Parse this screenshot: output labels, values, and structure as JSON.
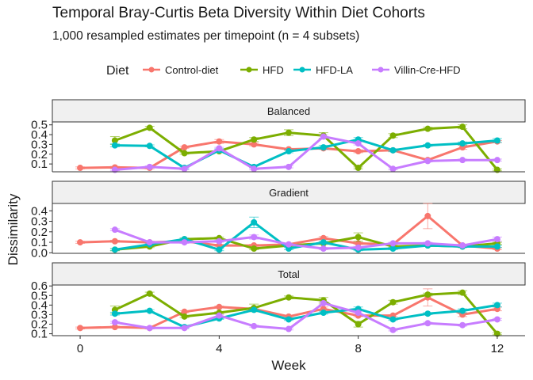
{
  "chart_data": {
    "type": "line",
    "title": "Temporal Bray-Curtis Beta Diversity Within Diet Cohorts",
    "subtitle": "1,000 resampled estimates per timepoint (n = 4 subsets)",
    "xlabel": "Week",
    "ylabel": "Dissimilarity",
    "xlim": [
      -0.8,
      12.8
    ],
    "x_ticks": [
      0,
      4,
      8,
      12
    ],
    "legend": {
      "title": "Diet",
      "position": "top"
    },
    "colors": {
      "Control-diet": "#F8766D",
      "HFD": "#7CAE00",
      "HFD-LA": "#00BFC4",
      "Villin-Cre-HFD": "#C77CFF"
    },
    "series_names": [
      "Control-diet",
      "HFD",
      "HFD-LA",
      "Villin-Cre-HFD"
    ],
    "grid": false,
    "panels": [
      {
        "label": "Balanced",
        "ylim": [
          0.02,
          0.53
        ],
        "y_ticks": [
          0.1,
          0.2,
          0.3,
          0.4,
          0.5
        ],
        "series": [
          {
            "name": "Control-diet",
            "x": [
              0,
              1,
              2,
              3,
              4,
              5,
              6,
              7,
              8,
              9,
              10,
              11,
              12
            ],
            "y": [
              0.06,
              0.065,
              0.06,
              0.27,
              0.33,
              0.3,
              0.25,
              0.26,
              0.23,
              0.24,
              0.14,
              0.27,
              0.33
            ],
            "err": [
              0.01,
              0.01,
              0.01,
              0.01,
              0.02,
              0.015,
              0.01,
              0.01,
              0.015,
              0.01,
              0.01,
              0.02,
              0.01
            ]
          },
          {
            "name": "HFD",
            "x": [
              1,
              2,
              3,
              4,
              5,
              6,
              7,
              8,
              9,
              10,
              11,
              12
            ],
            "y": [
              0.34,
              0.47,
              0.21,
              0.23,
              0.35,
              0.42,
              0.39,
              0.06,
              0.39,
              0.46,
              0.48,
              0.04
            ],
            "err": [
              0.04,
              0.015,
              0.01,
              0.01,
              0.02,
              0.03,
              0.03,
              0.01,
              0.02,
              0.015,
              0.02,
              0.01
            ]
          },
          {
            "name": "HFD-LA",
            "x": [
              1,
              2,
              3,
              4,
              5,
              6,
              7,
              8,
              9,
              10,
              11,
              12
            ],
            "y": [
              0.29,
              0.285,
              0.06,
              0.24,
              0.07,
              0.23,
              0.27,
              0.35,
              0.24,
              0.29,
              0.31,
              0.34
            ],
            "err": [
              0.015,
              0.01,
              0.01,
              0.015,
              0.01,
              0.015,
              0.02,
              0.02,
              0.015,
              0.01,
              0.015,
              0.02
            ]
          },
          {
            "name": "Villin-Cre-HFD",
            "x": [
              1,
              2,
              3,
              4,
              5,
              6,
              7,
              8,
              9,
              10,
              11,
              12
            ],
            "y": [
              0.04,
              0.07,
              0.05,
              0.26,
              0.05,
              0.07,
              0.38,
              0.31,
              0.05,
              0.13,
              0.14,
              0.14
            ],
            "err": [
              0.01,
              0.01,
              0.01,
              0.01,
              0.01,
              0.01,
              0.015,
              0.015,
              0.01,
              0.01,
              0.01,
              0.01
            ]
          }
        ]
      },
      {
        "label": "Gradient",
        "ylim": [
          -0.005,
          0.47
        ],
        "y_ticks": [
          0.0,
          0.1,
          0.2,
          0.3,
          0.4
        ],
        "series": [
          {
            "name": "Control-diet",
            "x": [
              0,
              1,
              2,
              3,
              4,
              5,
              6,
              7,
              8,
              9,
              10,
              11,
              12
            ],
            "y": [
              0.1,
              0.11,
              0.1,
              0.11,
              0.07,
              0.07,
              0.08,
              0.14,
              0.09,
              0.08,
              0.35,
              0.07,
              0.04
            ],
            "err": [
              0.01,
              0.01,
              0.01,
              0.01,
              0.01,
              0.01,
              0.01,
              0.015,
              0.01,
              0.01,
              0.12,
              0.01,
              0.01
            ]
          },
          {
            "name": "HFD",
            "x": [
              1,
              2,
              3,
              4,
              5,
              6,
              7,
              8,
              9,
              10,
              11,
              12
            ],
            "y": [
              0.03,
              0.06,
              0.13,
              0.14,
              0.04,
              0.07,
              0.09,
              0.15,
              0.06,
              0.07,
              0.06,
              0.09
            ],
            "err": [
              0.01,
              0.01,
              0.01,
              0.01,
              0.01,
              0.01,
              0.01,
              0.04,
              0.01,
              0.01,
              0.01,
              0.01
            ]
          },
          {
            "name": "HFD-LA",
            "x": [
              1,
              2,
              3,
              4,
              5,
              6,
              7,
              8,
              9,
              10,
              11,
              12
            ],
            "y": [
              0.03,
              0.08,
              0.13,
              0.03,
              0.29,
              0.04,
              0.1,
              0.03,
              0.04,
              0.07,
              0.06,
              0.06
            ],
            "err": [
              0.01,
              0.01,
              0.01,
              0.01,
              0.05,
              0.01,
              0.01,
              0.01,
              0.01,
              0.01,
              0.01,
              0.01
            ]
          },
          {
            "name": "Villin-Cre-HFD",
            "x": [
              1,
              2,
              3,
              4,
              5,
              6,
              7,
              8,
              9,
              10,
              11,
              12
            ],
            "y": [
              0.22,
              0.1,
              0.1,
              0.11,
              0.15,
              0.08,
              0.04,
              0.05,
              0.09,
              0.09,
              0.07,
              0.13
            ],
            "err": [
              0.01,
              0.01,
              0.01,
              0.01,
              0.02,
              0.01,
              0.01,
              0.01,
              0.01,
              0.01,
              0.01,
              0.02
            ]
          }
        ]
      },
      {
        "label": "Total",
        "ylim": [
          0.08,
          0.61
        ],
        "y_ticks": [
          0.1,
          0.2,
          0.3,
          0.4,
          0.5,
          0.6
        ],
        "series": [
          {
            "name": "Control-diet",
            "x": [
              0,
              1,
              2,
              3,
              4,
              5,
              6,
              7,
              8,
              9,
              10,
              11,
              12
            ],
            "y": [
              0.16,
              0.17,
              0.16,
              0.33,
              0.38,
              0.36,
              0.28,
              0.36,
              0.29,
              0.29,
              0.48,
              0.3,
              0.36
            ],
            "err": [
              0.01,
              0.01,
              0.01,
              0.01,
              0.01,
              0.015,
              0.01,
              0.02,
              0.01,
              0.01,
              0.09,
              0.02,
              0.02
            ]
          },
          {
            "name": "HFD",
            "x": [
              1,
              2,
              3,
              4,
              5,
              6,
              7,
              8,
              9,
              10,
              11,
              12
            ],
            "y": [
              0.35,
              0.52,
              0.28,
              0.32,
              0.37,
              0.48,
              0.45,
              0.2,
              0.43,
              0.51,
              0.53,
              0.1
            ],
            "err": [
              0.04,
              0.015,
              0.01,
              0.01,
              0.04,
              0.015,
              0.03,
              0.03,
              0.02,
              0.015,
              0.02,
              0.01
            ]
          },
          {
            "name": "HFD-LA",
            "x": [
              1,
              2,
              3,
              4,
              5,
              6,
              7,
              8,
              9,
              10,
              11,
              12
            ],
            "y": [
              0.31,
              0.34,
              0.17,
              0.26,
              0.35,
              0.25,
              0.32,
              0.36,
              0.25,
              0.31,
              0.34,
              0.4
            ],
            "err": [
              0.015,
              0.01,
              0.01,
              0.01,
              0.01,
              0.01,
              0.015,
              0.02,
              0.01,
              0.01,
              0.02,
              0.02
            ]
          },
          {
            "name": "Villin-Cre-HFD",
            "x": [
              1,
              2,
              3,
              4,
              5,
              6,
              7,
              8,
              9,
              10,
              11,
              12
            ],
            "y": [
              0.22,
              0.16,
              0.16,
              0.29,
              0.18,
              0.15,
              0.42,
              0.32,
              0.14,
              0.21,
              0.19,
              0.25
            ],
            "err": [
              0.01,
              0.01,
              0.01,
              0.01,
              0.01,
              0.01,
              0.015,
              0.015,
              0.01,
              0.01,
              0.01,
              0.01
            ]
          }
        ]
      }
    ]
  }
}
